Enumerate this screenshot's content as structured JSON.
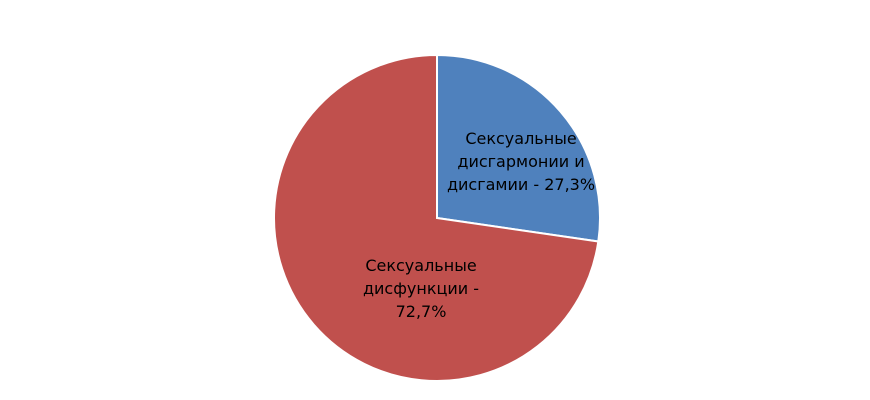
{
  "chart_data": {
    "type": "pie",
    "title": "",
    "slices": [
      {
        "label": "Сексуальные дисгармонии и дисгамии - 27,3%",
        "label_lines": [
          "Сексуальные",
          "дисгармонии и",
          "дисгамии - 27,3%"
        ],
        "value": 27.3,
        "color": "#4f81bd"
      },
      {
        "label": "Сексуальные дисфункции - 72,7%",
        "label_lines": [
          "Сексуальные",
          "дисфункции -",
          "72,7%"
        ],
        "value": 72.7,
        "color": "#c0504d"
      }
    ],
    "start_angle": "12 o'clock",
    "direction": "clockwise",
    "legend": "none"
  }
}
